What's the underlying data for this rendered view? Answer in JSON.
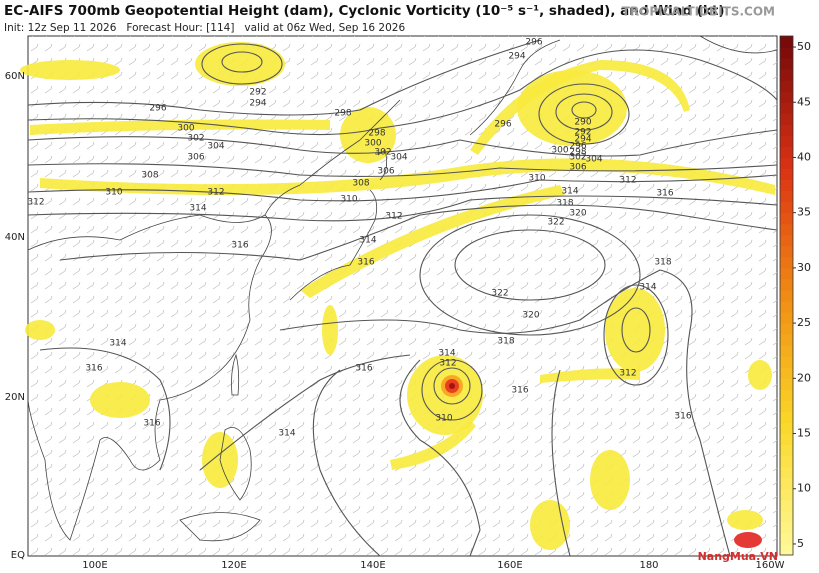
{
  "header": {
    "title": "EC-AIFS 700mb Geopotential Height (dam), Cyclonic Vorticity (10⁻⁵ s⁻¹, shaded), and Wind (kt)",
    "subtitle": "Init: 12z Sep 11 2026   Forecast Hour: [114]   valid at 06z Wed, Sep 16 2026",
    "brand": "TROPICALTIDBITS.COM"
  },
  "map": {
    "lon_labels": [
      "100E",
      "120E",
      "140E",
      "160E",
      "180",
      "160W"
    ],
    "lat_labels": [
      "60N",
      "40N",
      "20N",
      "EQ"
    ],
    "contour_labels": [
      "296",
      "294",
      "292",
      "294",
      "296",
      "298",
      "300",
      "302",
      "298",
      "300",
      "302",
      "304",
      "304",
      "306",
      "306",
      "308",
      "308",
      "310",
      "310",
      "312",
      "312",
      "314",
      "312",
      "314",
      "316",
      "316",
      "296",
      "290",
      "292",
      "294",
      "296",
      "298",
      "300",
      "302",
      "304",
      "306",
      "310",
      "314",
      "312",
      "316",
      "318",
      "320",
      "322",
      "322",
      "320",
      "318",
      "318",
      "314",
      "316",
      "314",
      "312",
      "310",
      "316",
      "312",
      "316",
      "314",
      "316",
      "316",
      "314"
    ]
  },
  "colorbar": {
    "lim": [
      4,
      51
    ],
    "ticks": [
      5,
      10,
      15,
      20,
      25,
      30,
      35,
      40,
      45,
      50
    ]
  },
  "watermark": "NangMua.VN"
}
